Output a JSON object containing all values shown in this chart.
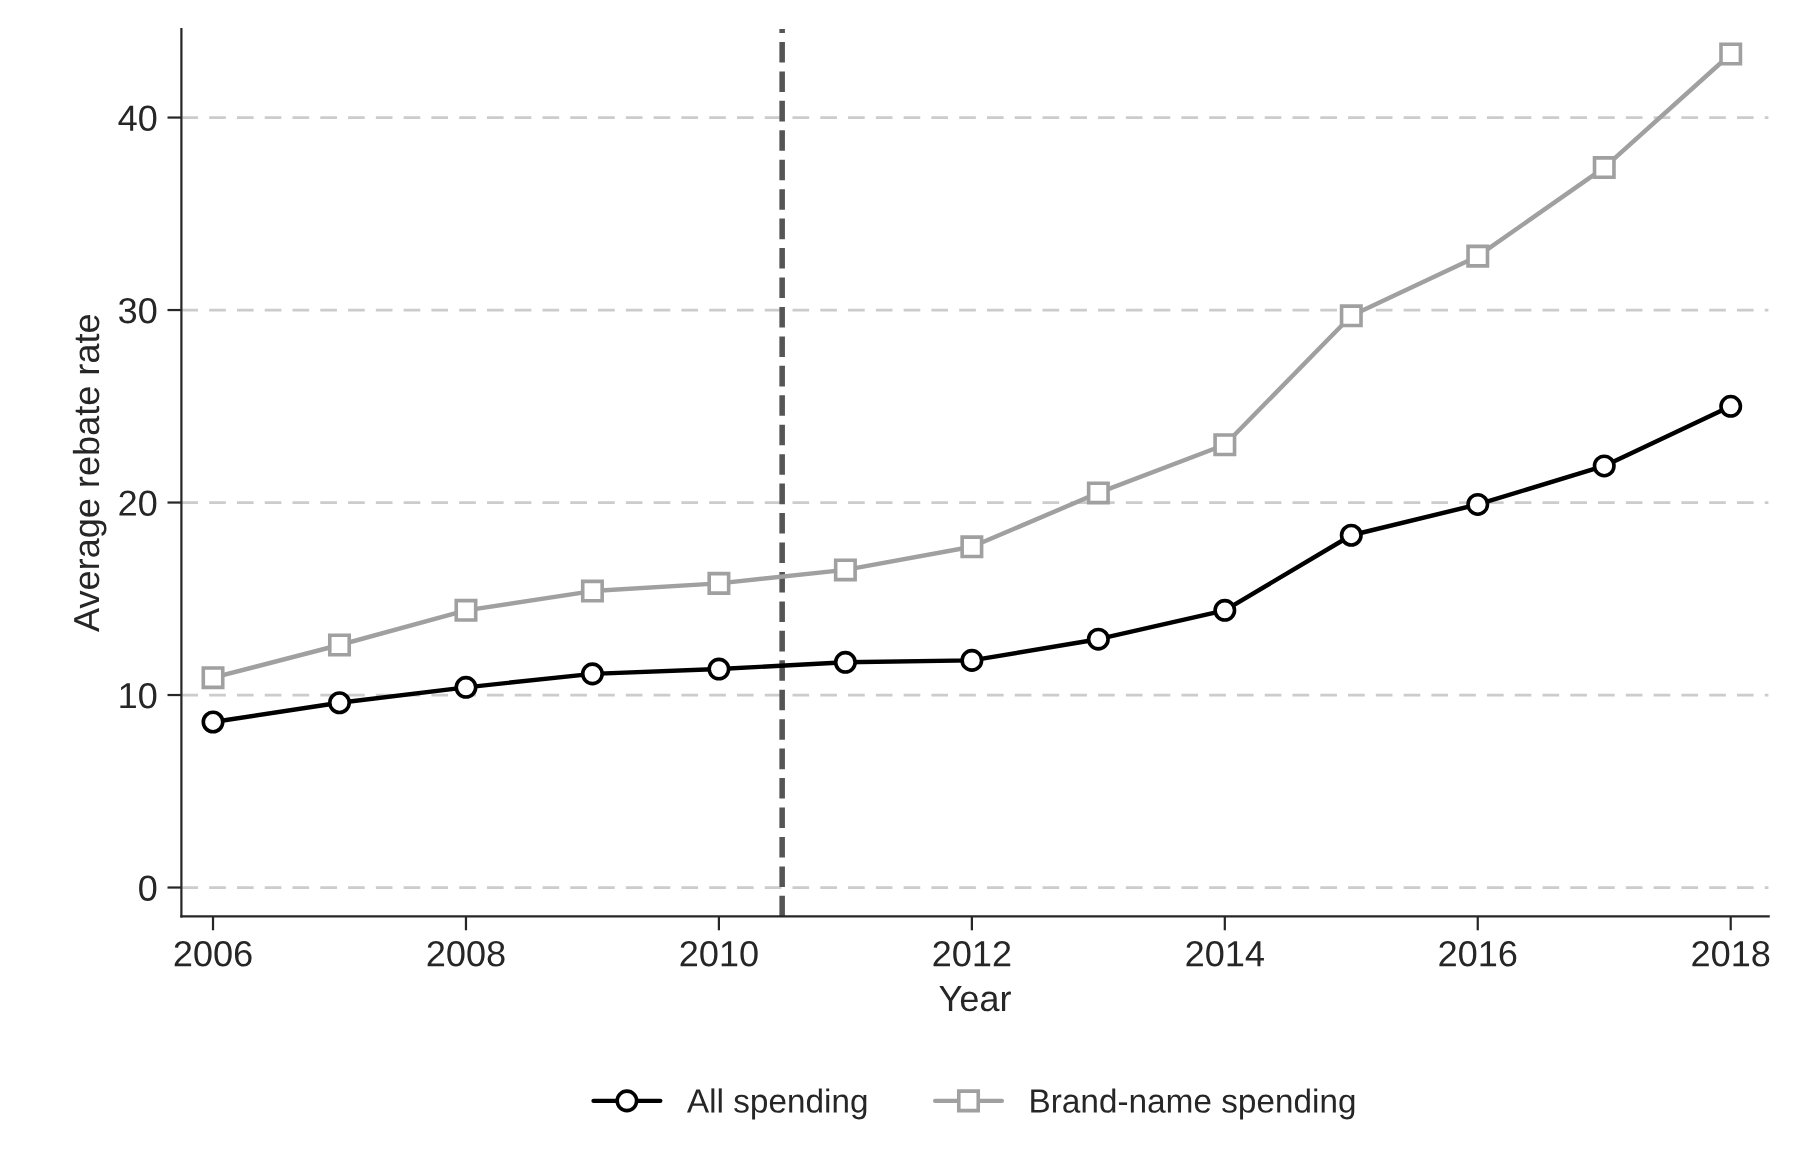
{
  "chart_data": {
    "type": "line",
    "xlabel": "Year",
    "ylabel": "Average rebate rate",
    "x": [
      2006,
      2007,
      2008,
      2009,
      2010,
      2011,
      2012,
      2013,
      2014,
      2015,
      2016,
      2017,
      2018
    ],
    "series": [
      {
        "name": "All spending",
        "color": "#000000",
        "marker": "circle",
        "values": [
          8.6,
          9.6,
          10.4,
          11.1,
          11.35,
          11.7,
          11.8,
          12.9,
          14.4,
          18.3,
          19.9,
          21.9,
          25.0
        ]
      },
      {
        "name": "Brand-name spending",
        "color": "#a0a0a0",
        "marker": "square",
        "values": [
          10.9,
          12.6,
          14.4,
          15.4,
          15.8,
          16.5,
          17.7,
          20.5,
          23.0,
          29.7,
          32.8,
          37.4,
          43.3
        ]
      }
    ],
    "xlim": [
      2005.75,
      2018.3
    ],
    "xticks": [
      2006,
      2008,
      2010,
      2012,
      2014,
      2016,
      2018
    ],
    "ylim": [
      -1.5,
      44.6
    ],
    "yticks": [
      0,
      10,
      20,
      30,
      40
    ],
    "ref_lines": [
      {
        "axis": "x",
        "value": 2010.5,
        "color": "#555555",
        "line_style": "dashed"
      }
    ],
    "grid": "y",
    "legend": "bottom",
    "line_style": "solid"
  }
}
